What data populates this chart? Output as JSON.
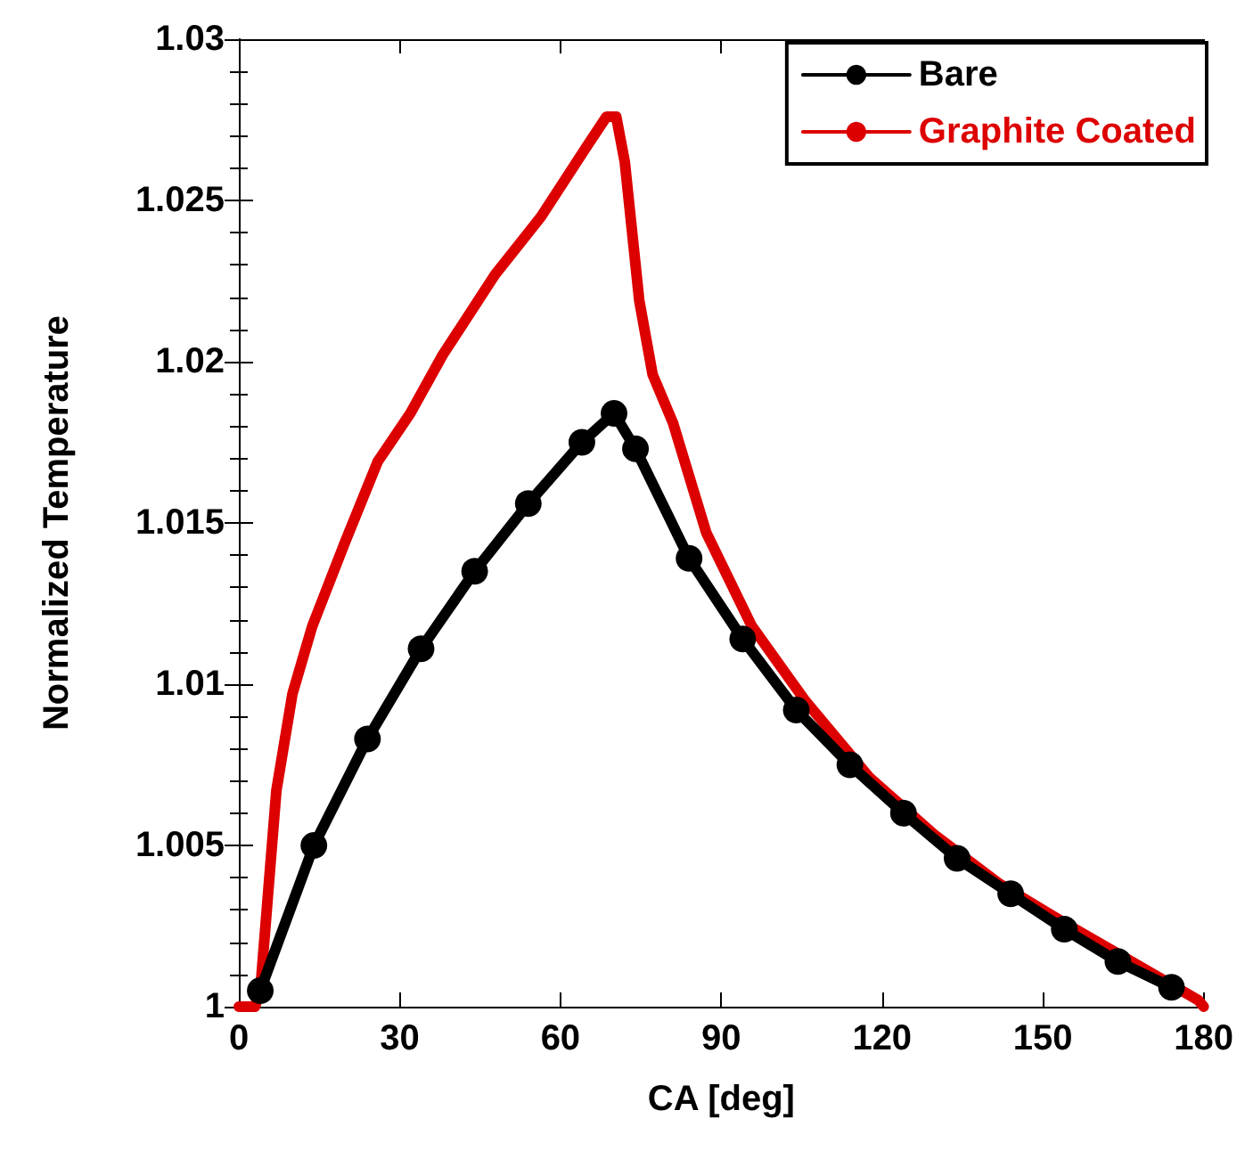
{
  "chart_data": {
    "type": "line",
    "xlabel": "CA [deg]",
    "ylabel": "Normalized Temperature",
    "xlim": [
      0,
      180
    ],
    "xticks": [
      0,
      30,
      60,
      90,
      120,
      150,
      180
    ],
    "ylim": [
      1,
      1.03
    ],
    "yticks": [
      1,
      1.005,
      1.01,
      1.015,
      1.02,
      1.025,
      1.03
    ],
    "grid": false,
    "legend": "top right",
    "line_style": "solid",
    "series": [
      {
        "name": "Bare",
        "color": "#000000",
        "marker": "circle",
        "x": [
          4,
          14,
          24,
          34,
          44,
          54,
          64,
          70,
          74,
          84,
          94,
          104,
          114,
          124,
          134,
          144,
          154,
          164,
          174
        ],
        "values": [
          1.0005,
          1.005,
          1.0083,
          1.0111,
          1.0135,
          1.0156,
          1.0175,
          1.0184,
          1.0173,
          1.0139,
          1.0114,
          1.0092,
          1.0075,
          1.006,
          1.0046,
          1.0035,
          1.0024,
          1.0014,
          1.0006
        ]
      },
      {
        "name": "Graphite Coated",
        "color": "#dd0000",
        "marker": "none",
        "x": [
          0,
          3,
          4,
          7,
          10,
          13.7,
          19.8,
          25.9,
          32,
          38,
          47.8,
          56.4,
          65,
          68.6,
          70.4,
          72,
          74.7,
          77.2,
          81,
          87.2,
          95.7,
          105.6,
          117.7,
          130,
          142,
          154,
          166.5,
          179,
          180
        ],
        "values": [
          1,
          1,
          1.0005,
          1.0067,
          1.0097,
          1.0118,
          1.0144,
          1.0169,
          1.0184,
          1.0202,
          1.0227,
          1.0245,
          1.0267,
          1.0276,
          1.0276,
          1.0262,
          1.0219,
          1.0196,
          1.0181,
          1.0147,
          1.0118,
          1.0095,
          1.0071,
          1.0053,
          1.0038,
          1.0026,
          1.0014,
          1.0002,
          1
        ]
      }
    ]
  }
}
